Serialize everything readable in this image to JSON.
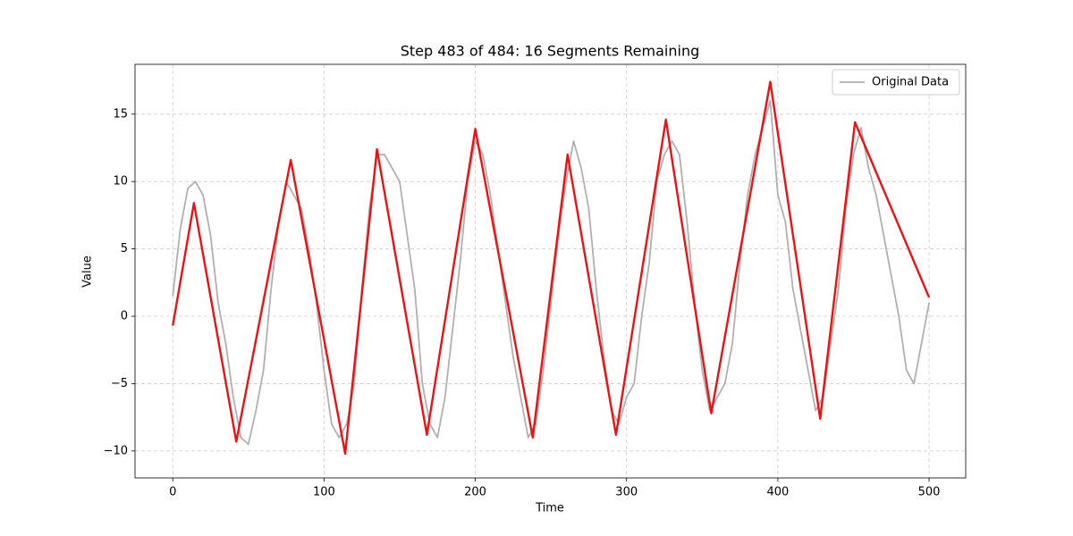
{
  "chart_data": {
    "type": "line",
    "title": "Step 483 of 484: 16 Segments Remaining",
    "xlabel": "Time",
    "ylabel": "Value",
    "xlim": [
      -24.95,
      524.2
    ],
    "ylim": [
      -12.0,
      18.7
    ],
    "xticks": [
      0,
      100,
      200,
      300,
      400,
      500
    ],
    "yticks": [
      {
        "value": -10,
        "label": "−10"
      },
      {
        "value": -5,
        "label": "−5"
      },
      0,
      5,
      10,
      15
    ],
    "grid": true,
    "legend": "upper right",
    "series": [
      {
        "name": "Original Data",
        "color": "#b0b0b0",
        "x": [
          0,
          5,
          10,
          15,
          20,
          25,
          30,
          35,
          40,
          45,
          50,
          55,
          60,
          65,
          70,
          75,
          80,
          85,
          90,
          95,
          100,
          105,
          110,
          115,
          120,
          125,
          130,
          135,
          140,
          145,
          150,
          155,
          160,
          165,
          170,
          175,
          180,
          185,
          190,
          195,
          200,
          205,
          210,
          215,
          220,
          225,
          230,
          235,
          240,
          245,
          250,
          255,
          260,
          265,
          270,
          275,
          280,
          285,
          290,
          295,
          300,
          305,
          310,
          315,
          320,
          325,
          330,
          335,
          340,
          345,
          350,
          355,
          360,
          365,
          370,
          375,
          380,
          385,
          390,
          395,
          400,
          405,
          410,
          415,
          420,
          425,
          430,
          435,
          440,
          445,
          450,
          455,
          460,
          465,
          470,
          475,
          480,
          485,
          490,
          495,
          500
        ],
        "values": [
          1.5,
          6.5,
          9.5,
          10,
          9,
          6,
          1,
          -2,
          -6,
          -9,
          -9.5,
          -7,
          -4,
          2,
          7,
          10,
          9,
          8,
          5,
          1,
          -4,
          -8,
          -9,
          -8,
          -5,
          2,
          8,
          12,
          12,
          11,
          10,
          6,
          2,
          -5,
          -8,
          -9,
          -6,
          -1,
          4,
          10,
          13,
          12,
          9,
          5,
          1,
          -3,
          -6,
          -9,
          -8,
          -4,
          1,
          6,
          10,
          13,
          11,
          8,
          2,
          -3,
          -7,
          -8,
          -6,
          -5,
          0,
          4,
          10,
          12,
          13,
          12,
          7,
          1,
          -4,
          -7,
          -6,
          -5,
          -2,
          4,
          9,
          12,
          14,
          16,
          9,
          7,
          2,
          -1,
          -4,
          -7,
          -6,
          -2,
          2,
          8,
          12,
          14,
          11,
          9,
          6,
          3,
          0,
          -4,
          -5,
          -2,
          1
        ]
      },
      {
        "color": "#ee1111",
        "x": [
          0,
          14,
          42,
          78,
          114,
          135,
          168,
          200,
          238,
          261,
          293,
          326,
          356,
          395,
          428,
          451,
          500
        ],
        "values": [
          -0.7,
          8.4,
          -9.3,
          11.6,
          -10.2,
          12.4,
          -8.8,
          13.9,
          -9.0,
          12.0,
          -8.8,
          14.6,
          -7.2,
          17.4,
          -7.6,
          14.4,
          1.4
        ]
      }
    ]
  }
}
